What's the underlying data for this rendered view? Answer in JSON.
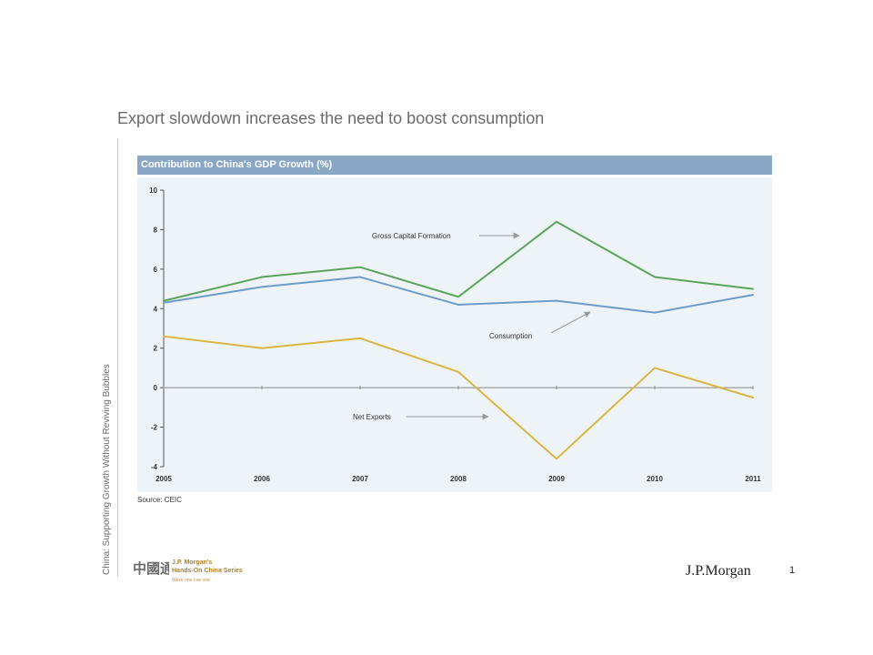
{
  "slide": {
    "title": "Export slowdown increases the need to boost consumption",
    "side_text": "China: Supporting Growth Without Reviving Bubbles",
    "source": "Source: CEIC",
    "page_number": "1",
    "brand": "J.P.Morgan",
    "logo": {
      "mark_text": "中國通",
      "line1": "J.P. Morgan's",
      "line2": "Hands-On China Series",
      "tagline": "Week one Lee one"
    }
  },
  "chart_data": {
    "type": "line",
    "title": "Contribution to China's GDP Growth (%)",
    "x": [
      "2005",
      "2006",
      "2007",
      "2008",
      "2009",
      "2010",
      "2011"
    ],
    "yticks": [
      "10",
      "8",
      "6",
      "4",
      "2",
      "0",
      "-2",
      "-4"
    ],
    "ylim": [
      -4,
      10
    ],
    "grid": false,
    "legend": "inline-annotations",
    "colors": {
      "gross_capital_formation": "#5aa55a",
      "consumption": "#6d9ccb",
      "net_exports": "#d9b640",
      "arrow": "#9a9a9a"
    },
    "series": [
      {
        "name": "Gross Capital Formation",
        "values": [
          4.4,
          5.6,
          6.1,
          4.6,
          8.4,
          5.6,
          5.0
        ]
      },
      {
        "name": "Consumption",
        "values": [
          4.3,
          5.1,
          5.6,
          4.2,
          4.4,
          3.8,
          4.7
        ]
      },
      {
        "name": "Net Exports",
        "values": [
          2.6,
          2.0,
          2.5,
          0.8,
          -3.6,
          1.0,
          -0.5
        ]
      }
    ]
  }
}
